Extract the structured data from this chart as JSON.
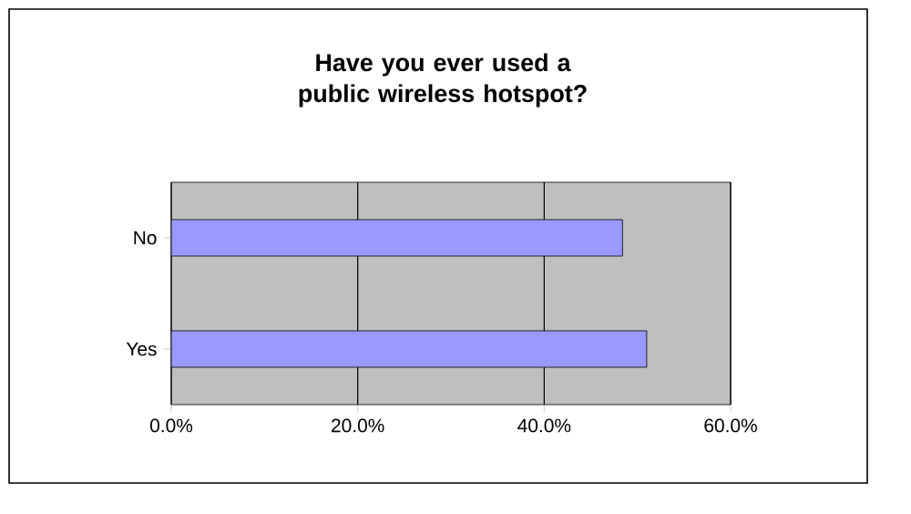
{
  "chart_data": {
    "type": "bar",
    "title": "Have you ever used a public wireless hotspot?",
    "orientation": "horizontal",
    "categories": [
      "No",
      "Yes"
    ],
    "values": [
      48.4,
      51.0
    ],
    "color": "#9999ff",
    "xlim": [
      0,
      60
    ],
    "xticks": [
      {
        "value": 0,
        "label": "0.0%"
      },
      {
        "value": 20,
        "label": "20.0%"
      },
      {
        "value": 40,
        "label": "40.0%"
      },
      {
        "value": 60,
        "label": "60.0%"
      }
    ],
    "grid": "x"
  }
}
